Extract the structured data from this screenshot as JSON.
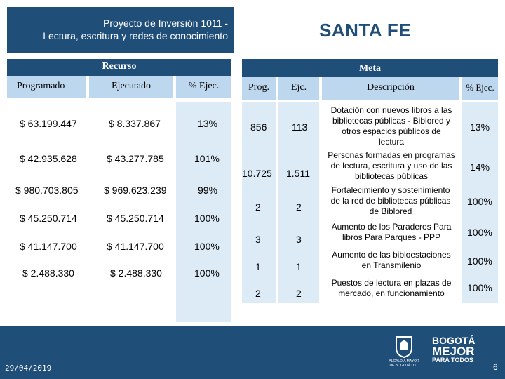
{
  "title": {
    "line1": "Proyecto de Inversión 1011 -",
    "line2": "Lectura, escritura y redes de conocimiento"
  },
  "location": "SANTA FE",
  "recurso": {
    "header": "Recurso",
    "columns": [
      "Programado",
      "Ejecutado",
      "% Ejec."
    ],
    "rows": [
      {
        "programado": "$ 63.199.447",
        "ejecutado": "$ 8.337.867",
        "pct": "13%"
      },
      {
        "programado": "$ 42.935.628",
        "ejecutado": "$ 43.277.785",
        "pct": "101%"
      },
      {
        "programado": "$ 980.703.805",
        "ejecutado": "$ 969.623.239",
        "pct": "99%"
      },
      {
        "programado": "$ 45.250.714",
        "ejecutado": "$ 45.250.714",
        "pct": "100%"
      },
      {
        "programado": "$ 41.147.700",
        "ejecutado": "$ 41.147.700",
        "pct": "100%"
      },
      {
        "programado": "$ 2.488.330",
        "ejecutado": "$ 2.488.330",
        "pct": "100%"
      }
    ]
  },
  "meta": {
    "header": "Meta",
    "columns": [
      "Prog.",
      "Ejc.",
      "Descripción",
      "% Ejec."
    ],
    "rows": [
      {
        "prog": "856",
        "ejc": "113",
        "desc": [
          "Dotación con nuevos libros a las",
          "bibliotecas públicas - Biblored y",
          "otros  espacios públicos de",
          "lectura"
        ],
        "pct": "13%"
      },
      {
        "prog": "10.725",
        "ejc": "1.511",
        "desc": [
          "Personas formadas en programas",
          "de lectura, escritura y uso de las",
          "bibliotecas públicas"
        ],
        "pct": "14%"
      },
      {
        "prog": "2",
        "ejc": "2",
        "desc": [
          "Fortalecimiento y sostenimiento",
          "de la red de bibliotecas públicas",
          "de Biblored"
        ],
        "pct": "100%"
      },
      {
        "prog": "3",
        "ejc": "3",
        "desc": [
          "Aumento de los Paraderos Para",
          "libros Para Parques - PPP"
        ],
        "pct": "100%"
      },
      {
        "prog": "1",
        "ejc": "1",
        "desc": [
          "Aumento de las bibloestaciones",
          "en Transmilenio"
        ],
        "pct": "100%"
      },
      {
        "prog": "2",
        "ejc": "2",
        "desc": [
          "Puestos de lectura en plazas de",
          "mercado, en funcionamiento"
        ],
        "pct": "100%"
      }
    ]
  },
  "footer": {
    "date": "29/04/2019",
    "page": "6",
    "logo_alcaldia": [
      "ALCALDÍA MAYOR",
      "DE BOGOTÁ D.C."
    ],
    "logo_bogota": [
      "BOGOTÁ",
      "MEJOR",
      "PARA TODOS"
    ]
  }
}
